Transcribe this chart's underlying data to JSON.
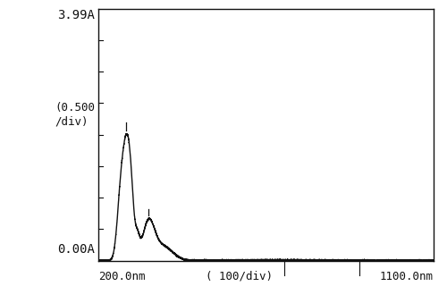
{
  "x_min": 200,
  "x_max": 1100,
  "y_min": 0.0,
  "y_max": 3.99,
  "x_label_left": "200.0nm",
  "x_label_center": "( 100/div)",
  "x_label_right": "1100.0nm",
  "y_label_top": "3.99A",
  "y_label_mid": "(0.500\n/div)",
  "y_label_bot": "0.00A",
  "background_color": "#ffffff",
  "plot_bg_color": "#ffffff",
  "line_color": "#111111",
  "spine_color": "#111111",
  "peak1_nm": 275,
  "peak2_nm": 335,
  "x_axis_ticks_nm": [
    700,
    900
  ],
  "y_minor_ticks": [
    0.5,
    1.0,
    1.5,
    2.0,
    2.5,
    3.0,
    3.5
  ],
  "figsize": [
    5.0,
    3.39
  ],
  "dpi": 100
}
